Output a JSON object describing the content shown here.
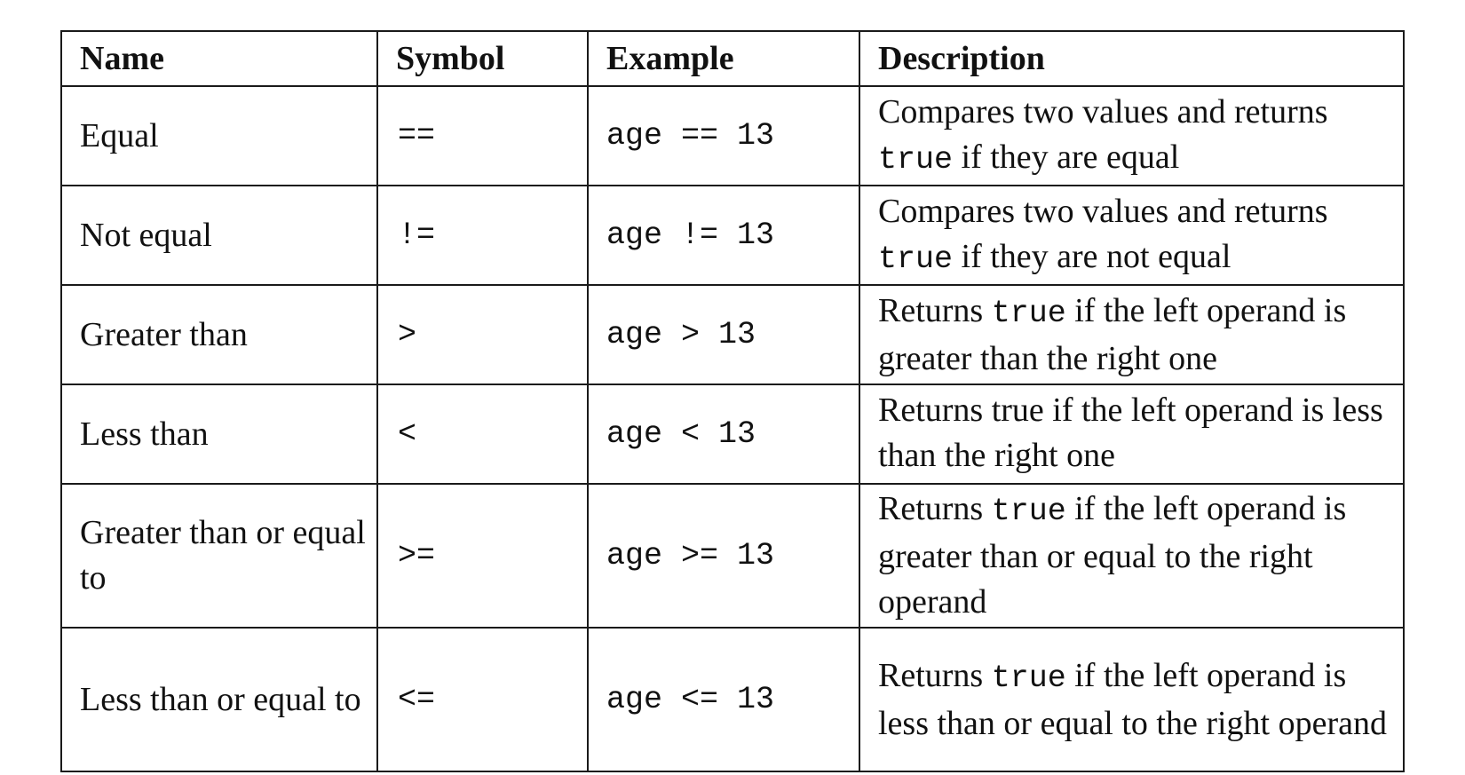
{
  "table": {
    "headers": {
      "name": "Name",
      "symbol": "Symbol",
      "example": "Example",
      "description": "Description"
    },
    "rows": [
      {
        "name": "Equal",
        "symbol": "==",
        "example": "age == 13",
        "desc_pre": "Compares two values and returns ",
        "desc_code": "true",
        "desc_post": " if they are equal"
      },
      {
        "name": "Not equal",
        "symbol": "!=",
        "example": "age != 13",
        "desc_pre": "Compares two values and returns ",
        "desc_code": "true",
        "desc_post": " if they are not equal"
      },
      {
        "name": "Greater than",
        "symbol": ">",
        "example": "age > 13",
        "desc_pre": "Returns ",
        "desc_code": "true",
        "desc_post": " if the left operand is greater than the right one"
      },
      {
        "name": "Less than",
        "symbol": "<",
        "example": "age < 13",
        "desc_pre": "Returns true if the left operand is less than the right one",
        "desc_code": "",
        "desc_post": ""
      },
      {
        "name": "Greater than or equal to",
        "symbol": ">=",
        "example": "age >= 13",
        "desc_pre": "Returns ",
        "desc_code": "true",
        "desc_post": " if the left operand is greater than or equal to the right operand"
      },
      {
        "name": "Less than or equal to",
        "symbol": "<=",
        "example": "age <= 13",
        "desc_pre": "Returns ",
        "desc_code": "true",
        "desc_post": " if the left operand is less than or equal to the right operand"
      }
    ]
  }
}
